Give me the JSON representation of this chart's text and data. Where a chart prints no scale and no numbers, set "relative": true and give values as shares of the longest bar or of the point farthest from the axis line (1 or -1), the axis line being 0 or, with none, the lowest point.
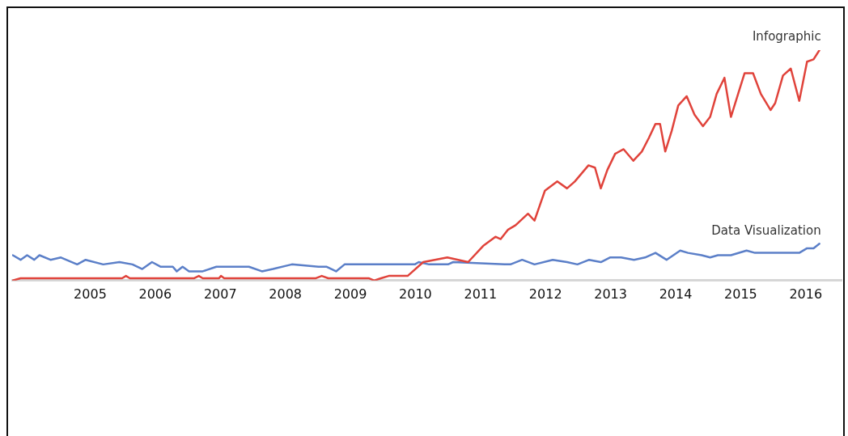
{
  "chart_data": {
    "type": "line",
    "relative": true,
    "xlim": [
      2003.8,
      2016.55
    ],
    "xticks": [
      2005,
      2006,
      2007,
      2008,
      2009,
      2010,
      2011,
      2012,
      2013,
      2014,
      2015,
      2016
    ],
    "tick_labels": "x",
    "grid": false,
    "legend": false,
    "marker": "none",
    "series": [
      {
        "name": "Infographic",
        "color": "#e0433b",
        "x": [
          2003.81,
          2003.93,
          2004.12,
          2004.37,
          2004.61,
          2004.86,
          2005.49,
          2005.55,
          2005.61,
          2006.6,
          2006.67,
          2006.73,
          2006.98,
          2007.01,
          2007.06,
          2008.47,
          2008.56,
          2008.66,
          2008.97,
          2009.28,
          2009.37,
          2009.47,
          2009.59,
          2009.88,
          2010.12,
          2010.49,
          2010.81,
          2011.04,
          2011.23,
          2011.31,
          2011.42,
          2011.54,
          2011.73,
          2011.83,
          2011.99,
          2012.18,
          2012.33,
          2012.45,
          2012.66,
          2012.76,
          2012.85,
          2012.95,
          2013.07,
          2013.2,
          2013.35,
          2013.48,
          2013.59,
          2013.69,
          2013.76,
          2013.84,
          2013.94,
          2014.04,
          2014.17,
          2014.29,
          2014.42,
          2014.53,
          2014.63,
          2014.75,
          2014.85,
          2014.96,
          2015.06,
          2015.19,
          2015.31,
          2015.46,
          2015.53,
          2015.65,
          2015.77,
          2015.9,
          2016.02,
          2016.12,
          2016.21
        ],
        "values": [
          0,
          0.01,
          0.01,
          0.01,
          0.01,
          0.01,
          0.01,
          0.02,
          0.01,
          0.01,
          0.02,
          0.01,
          0.01,
          0.02,
          0.01,
          0.01,
          0.02,
          0.01,
          0.01,
          0.01,
          0,
          0.01,
          0.02,
          0.02,
          0.08,
          0.1,
          0.08,
          0.15,
          0.19,
          0.18,
          0.22,
          0.24,
          0.29,
          0.26,
          0.39,
          0.43,
          0.4,
          0.43,
          0.5,
          0.49,
          0.4,
          0.48,
          0.55,
          0.57,
          0.52,
          0.56,
          0.62,
          0.68,
          0.68,
          0.56,
          0.65,
          0.76,
          0.8,
          0.72,
          0.67,
          0.71,
          0.81,
          0.88,
          0.71,
          0.81,
          0.9,
          0.9,
          0.81,
          0.74,
          0.77,
          0.89,
          0.92,
          0.78,
          0.95,
          0.96,
          1
        ]
      },
      {
        "name": "Data Visualization",
        "color": "#5b7fc8",
        "x": [
          2003.81,
          2003.93,
          2004.03,
          2004.14,
          2004.22,
          2004.39,
          2004.55,
          2004.8,
          2004.93,
          2005.2,
          2005.45,
          2005.65,
          2005.8,
          2005.95,
          2006.08,
          2006.27,
          2006.33,
          2006.42,
          2006.52,
          2006.73,
          2006.94,
          2007.44,
          2007.64,
          2007.81,
          2008.1,
          2008.51,
          2008.63,
          2008.78,
          2008.91,
          2009.18,
          2009.38,
          2009.55,
          2009.84,
          2009.99,
          2010.05,
          2010.21,
          2010.5,
          2010.58,
          2011.37,
          2011.46,
          2011.64,
          2011.83,
          2012.11,
          2012.33,
          2012.49,
          2012.67,
          2012.85,
          2012.99,
          2013.16,
          2013.36,
          2013.53,
          2013.69,
          2013.86,
          2014.07,
          2014.19,
          2014.4,
          2014.53,
          2014.65,
          2014.85,
          2015.09,
          2015.22,
          2015.47,
          2015.72,
          2015.9,
          2016.02,
          2016.12,
          2016.21
        ],
        "values": [
          0.11,
          0.09,
          0.11,
          0.09,
          0.11,
          0.09,
          0.1,
          0.07,
          0.09,
          0.07,
          0.08,
          0.07,
          0.05,
          0.08,
          0.06,
          0.06,
          0.04,
          0.06,
          0.04,
          0.04,
          0.06,
          0.06,
          0.04,
          0.05,
          0.07,
          0.06,
          0.06,
          0.04,
          0.07,
          0.07,
          0.07,
          0.07,
          0.07,
          0.07,
          0.08,
          0.07,
          0.07,
          0.08,
          0.07,
          0.07,
          0.09,
          0.07,
          0.09,
          0.08,
          0.07,
          0.09,
          0.08,
          0.1,
          0.1,
          0.09,
          0.1,
          0.12,
          0.09,
          0.13,
          0.12,
          0.11,
          0.1,
          0.11,
          0.11,
          0.13,
          0.12,
          0.12,
          0.12,
          0.12,
          0.14,
          0.14,
          0.16
        ]
      }
    ]
  }
}
